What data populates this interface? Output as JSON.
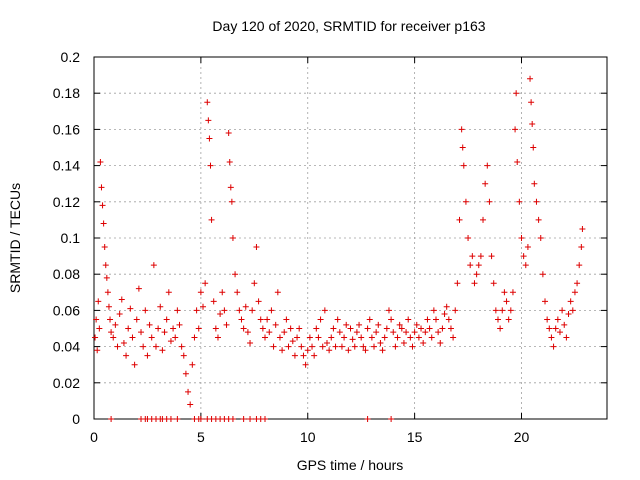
{
  "chart_data": {
    "type": "scatter",
    "title": "Day 120 of 2020, SRMTID for receiver p163",
    "xlabel": "GPS time / hours",
    "ylabel": "SRMTID / TECUs",
    "xlim": [
      0,
      24
    ],
    "ylim": [
      0,
      0.2
    ],
    "xticks": [
      0,
      5,
      10,
      15,
      20
    ],
    "xtick_labels": [
      "0",
      "5",
      "10",
      "15",
      "20"
    ],
    "yticks": [
      0,
      0.02,
      0.04,
      0.06,
      0.08,
      0.1,
      0.12,
      0.14,
      0.16,
      0.18,
      0.2
    ],
    "ytick_labels": [
      "0",
      "0.02",
      "0.04",
      "0.06",
      "0.08",
      "0.1",
      "0.12",
      "0.14",
      "0.16",
      "0.18",
      "0.2"
    ],
    "grid": true,
    "marker": "+",
    "marker_color": "#dd0000",
    "series": [
      {
        "name": "SRMTID",
        "points": [
          [
            0.05,
            0.045
          ],
          [
            0.1,
            0.055
          ],
          [
            0.15,
            0.038
          ],
          [
            0.2,
            0.065
          ],
          [
            0.25,
            0.05
          ],
          [
            0.3,
            0.142
          ],
          [
            0.35,
            0.128
          ],
          [
            0.4,
            0.118
          ],
          [
            0.45,
            0.108
          ],
          [
            0.5,
            0.095
          ],
          [
            0.55,
            0.085
          ],
          [
            0.6,
            0.078
          ],
          [
            0.65,
            0.07
          ],
          [
            0.7,
            0.062
          ],
          [
            0.75,
            0.055
          ],
          [
            0.8,
            0.048
          ],
          [
            0.9,
            0.045
          ],
          [
            1.0,
            0.052
          ],
          [
            1.1,
            0.04
          ],
          [
            1.2,
            0.058
          ],
          [
            1.3,
            0.066
          ],
          [
            1.4,
            0.042
          ],
          [
            1.5,
            0.035
          ],
          [
            1.6,
            0.05
          ],
          [
            1.7,
            0.061
          ],
          [
            1.8,
            0.045
          ],
          [
            1.9,
            0.03
          ],
          [
            2.0,
            0.055
          ],
          [
            2.1,
            0.072
          ],
          [
            2.2,
            0.048
          ],
          [
            2.3,
            0.04
          ],
          [
            2.4,
            0.06
          ],
          [
            2.5,
            0.035
          ],
          [
            2.6,
            0.052
          ],
          [
            2.7,
            0.045
          ],
          [
            2.8,
            0.085
          ],
          [
            2.9,
            0.04
          ],
          [
            3.0,
            0.05
          ],
          [
            3.1,
            0.062
          ],
          [
            3.2,
            0.038
          ],
          [
            3.3,
            0.048
          ],
          [
            3.4,
            0.055
          ],
          [
            3.5,
            0.07
          ],
          [
            3.6,
            0.043
          ],
          [
            3.7,
            0.05
          ],
          [
            3.8,
            0.045
          ],
          [
            3.9,
            0.06
          ],
          [
            4.0,
            0.052
          ],
          [
            4.1,
            0.04
          ],
          [
            4.2,
            0.035
          ],
          [
            4.3,
            0.025
          ],
          [
            4.4,
            0.015
          ],
          [
            4.5,
            0.008
          ],
          [
            4.6,
            0.03
          ],
          [
            4.7,
            0.045
          ],
          [
            4.8,
            0.06
          ],
          [
            4.9,
            0.05
          ],
          [
            5.0,
            0.07
          ],
          [
            5.1,
            0.062
          ],
          [
            5.2,
            0.075
          ],
          [
            5.3,
            0.175
          ],
          [
            5.35,
            0.165
          ],
          [
            5.4,
            0.155
          ],
          [
            5.45,
            0.14
          ],
          [
            5.5,
            0.11
          ],
          [
            5.6,
            0.065
          ],
          [
            5.7,
            0.05
          ],
          [
            5.8,
            0.045
          ],
          [
            5.9,
            0.058
          ],
          [
            6.0,
            0.07
          ],
          [
            6.1,
            0.06
          ],
          [
            6.2,
            0.052
          ],
          [
            6.3,
            0.158
          ],
          [
            6.35,
            0.142
          ],
          [
            6.4,
            0.128
          ],
          [
            6.45,
            0.12
          ],
          [
            6.5,
            0.1
          ],
          [
            6.6,
            0.08
          ],
          [
            6.7,
            0.07
          ],
          [
            6.8,
            0.06
          ],
          [
            6.9,
            0.055
          ],
          [
            7.0,
            0.05
          ],
          [
            7.1,
            0.062
          ],
          [
            7.2,
            0.048
          ],
          [
            7.3,
            0.042
          ],
          [
            7.4,
            0.06
          ],
          [
            7.5,
            0.075
          ],
          [
            7.6,
            0.095
          ],
          [
            7.7,
            0.065
          ],
          [
            7.8,
            0.055
          ],
          [
            7.9,
            0.05
          ],
          [
            8.0,
            0.045
          ],
          [
            8.1,
            0.055
          ],
          [
            8.2,
            0.048
          ],
          [
            8.3,
            0.06
          ],
          [
            8.4,
            0.04
          ],
          [
            8.5,
            0.052
          ],
          [
            8.6,
            0.07
          ],
          [
            8.7,
            0.045
          ],
          [
            8.8,
            0.038
          ],
          [
            8.9,
            0.048
          ],
          [
            9.0,
            0.055
          ],
          [
            9.1,
            0.04
          ],
          [
            9.2,
            0.05
          ],
          [
            9.3,
            0.043
          ],
          [
            9.4,
            0.035
          ],
          [
            9.5,
            0.045
          ],
          [
            9.6,
            0.05
          ],
          [
            9.7,
            0.04
          ],
          [
            9.8,
            0.035
          ],
          [
            9.9,
            0.03
          ],
          [
            10.0,
            0.038
          ],
          [
            10.1,
            0.045
          ],
          [
            10.2,
            0.04
          ],
          [
            10.3,
            0.035
          ],
          [
            10.4,
            0.05
          ],
          [
            10.5,
            0.045
          ],
          [
            10.6,
            0.055
          ],
          [
            10.7,
            0.04
          ],
          [
            10.8,
            0.06
          ],
          [
            10.9,
            0.042
          ],
          [
            11.0,
            0.038
          ],
          [
            11.1,
            0.045
          ],
          [
            11.2,
            0.05
          ],
          [
            11.3,
            0.04
          ],
          [
            11.4,
            0.055
          ],
          [
            11.5,
            0.048
          ],
          [
            11.6,
            0.04
          ],
          [
            11.7,
            0.045
          ],
          [
            11.8,
            0.052
          ],
          [
            11.9,
            0.038
          ],
          [
            12.0,
            0.05
          ],
          [
            12.1,
            0.044
          ],
          [
            12.2,
            0.04
          ],
          [
            12.3,
            0.048
          ],
          [
            12.4,
            0.052
          ],
          [
            12.5,
            0.045
          ],
          [
            12.6,
            0.04
          ],
          [
            12.7,
            0.038
          ],
          [
            12.8,
            0.05
          ],
          [
            12.9,
            0.055
          ],
          [
            13.0,
            0.045
          ],
          [
            13.1,
            0.04
          ],
          [
            13.2,
            0.048
          ],
          [
            13.3,
            0.052
          ],
          [
            13.4,
            0.042
          ],
          [
            13.5,
            0.038
          ],
          [
            13.6,
            0.045
          ],
          [
            13.7,
            0.05
          ],
          [
            13.8,
            0.06
          ],
          [
            13.9,
            0.055
          ],
          [
            14.0,
            0.048
          ],
          [
            14.1,
            0.04
          ],
          [
            14.2,
            0.045
          ],
          [
            14.3,
            0.052
          ],
          [
            14.4,
            0.05
          ],
          [
            14.5,
            0.042
          ],
          [
            14.6,
            0.048
          ],
          [
            14.7,
            0.055
          ],
          [
            14.8,
            0.045
          ],
          [
            14.9,
            0.04
          ],
          [
            15.0,
            0.048
          ],
          [
            15.1,
            0.052
          ],
          [
            15.2,
            0.045
          ],
          [
            15.3,
            0.05
          ],
          [
            15.4,
            0.042
          ],
          [
            15.5,
            0.048
          ],
          [
            15.6,
            0.055
          ],
          [
            15.7,
            0.05
          ],
          [
            15.8,
            0.045
          ],
          [
            15.9,
            0.06
          ],
          [
            16.0,
            0.055
          ],
          [
            16.1,
            0.048
          ],
          [
            16.2,
            0.042
          ],
          [
            16.3,
            0.05
          ],
          [
            16.4,
            0.058
          ],
          [
            16.5,
            0.062
          ],
          [
            16.6,
            0.055
          ],
          [
            16.7,
            0.05
          ],
          [
            16.8,
            0.045
          ],
          [
            16.9,
            0.06
          ],
          [
            17.0,
            0.075
          ],
          [
            17.1,
            0.11
          ],
          [
            17.2,
            0.16
          ],
          [
            17.25,
            0.15
          ],
          [
            17.3,
            0.14
          ],
          [
            17.4,
            0.12
          ],
          [
            17.5,
            0.1
          ],
          [
            17.6,
            0.085
          ],
          [
            17.7,
            0.09
          ],
          [
            17.8,
            0.075
          ],
          [
            17.9,
            0.08
          ],
          [
            18.0,
            0.085
          ],
          [
            18.1,
            0.09
          ],
          [
            18.2,
            0.11
          ],
          [
            18.3,
            0.13
          ],
          [
            18.4,
            0.14
          ],
          [
            18.5,
            0.12
          ],
          [
            18.6,
            0.09
          ],
          [
            18.7,
            0.075
          ],
          [
            18.8,
            0.06
          ],
          [
            18.9,
            0.055
          ],
          [
            19.0,
            0.05
          ],
          [
            19.1,
            0.06
          ],
          [
            19.2,
            0.07
          ],
          [
            19.3,
            0.065
          ],
          [
            19.4,
            0.055
          ],
          [
            19.5,
            0.06
          ],
          [
            19.6,
            0.07
          ],
          [
            19.7,
            0.16
          ],
          [
            19.75,
            0.18
          ],
          [
            19.8,
            0.142
          ],
          [
            19.9,
            0.12
          ],
          [
            20.0,
            0.1
          ],
          [
            20.1,
            0.09
          ],
          [
            20.2,
            0.085
          ],
          [
            20.3,
            0.095
          ],
          [
            20.4,
            0.188
          ],
          [
            20.45,
            0.175
          ],
          [
            20.5,
            0.163
          ],
          [
            20.55,
            0.15
          ],
          [
            20.6,
            0.13
          ],
          [
            20.7,
            0.12
          ],
          [
            20.8,
            0.11
          ],
          [
            20.9,
            0.1
          ],
          [
            21.0,
            0.08
          ],
          [
            21.1,
            0.065
          ],
          [
            21.2,
            0.055
          ],
          [
            21.3,
            0.05
          ],
          [
            21.4,
            0.045
          ],
          [
            21.5,
            0.04
          ],
          [
            21.6,
            0.05
          ],
          [
            21.7,
            0.055
          ],
          [
            21.8,
            0.048
          ],
          [
            21.9,
            0.06
          ],
          [
            22.0,
            0.052
          ],
          [
            22.1,
            0.045
          ],
          [
            22.2,
            0.058
          ],
          [
            22.3,
            0.065
          ],
          [
            22.4,
            0.06
          ],
          [
            22.5,
            0.07
          ],
          [
            22.6,
            0.075
          ],
          [
            22.7,
            0.085
          ],
          [
            22.8,
            0.095
          ],
          [
            22.85,
            0.105
          ],
          [
            0.8,
            0.0
          ],
          [
            2.2,
            0.0
          ],
          [
            2.4,
            0.0
          ],
          [
            2.5,
            0.0
          ],
          [
            2.7,
            0.0
          ],
          [
            2.9,
            0.0
          ],
          [
            3.1,
            0.0
          ],
          [
            3.2,
            0.0
          ],
          [
            3.4,
            0.0
          ],
          [
            3.6,
            0.0
          ],
          [
            3.9,
            0.0
          ],
          [
            4.7,
            0.0
          ],
          [
            4.9,
            0.0
          ],
          [
            5.0,
            0.0
          ],
          [
            5.3,
            0.0
          ],
          [
            5.5,
            0.0
          ],
          [
            5.7,
            0.0
          ],
          [
            5.9,
            0.0
          ],
          [
            6.1,
            0.0
          ],
          [
            6.3,
            0.0
          ],
          [
            6.5,
            0.0
          ],
          [
            7.0,
            0.0
          ],
          [
            7.3,
            0.0
          ],
          [
            7.6,
            0.0
          ],
          [
            7.8,
            0.0
          ],
          [
            8.0,
            0.0
          ],
          [
            12.8,
            0.0
          ],
          [
            13.9,
            0.0
          ]
        ]
      }
    ]
  }
}
